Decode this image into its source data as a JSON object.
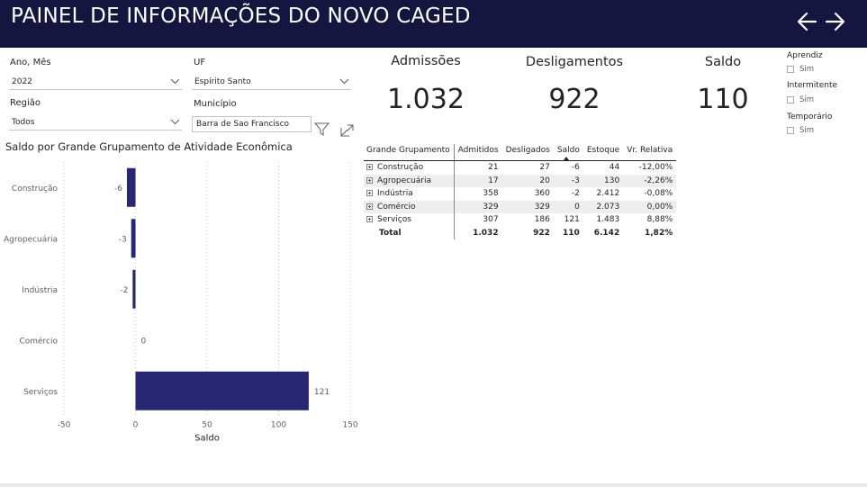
{
  "header": {
    "title": "PAINEL DE INFORMAÇÕES DO NOVO CAGED"
  },
  "filters": {
    "ano_mes": {
      "label": "Ano, Mês",
      "value": "2022"
    },
    "uf": {
      "label": "UF",
      "value": "Espírito Santo"
    },
    "regiao": {
      "label": "Região",
      "value": "Todos"
    },
    "municipio": {
      "label": "Município",
      "value": "Barra de Sao Francisco"
    }
  },
  "kpis": {
    "admissoes": {
      "label": "Admissões",
      "value": "1.032"
    },
    "desligamentos": {
      "label": "Desligamentos",
      "value": "922"
    },
    "saldo": {
      "label": "Saldo",
      "value": "110"
    }
  },
  "checkbox_filters": [
    {
      "group": "Aprendiz",
      "option": "Sim",
      "checked": false
    },
    {
      "group": "Intermitente",
      "option": "Sim",
      "checked": false
    },
    {
      "group": "Temporário",
      "option": "Sim",
      "checked": false
    }
  ],
  "icons": [
    "arrow-left-icon",
    "arrow-right-icon",
    "filter-icon",
    "focus-mode-icon",
    "chevron-down-icon",
    "expand-icon",
    "sort-descending-icon"
  ],
  "colors": {
    "header_bg": "#15163f",
    "bar": "#272773"
  },
  "matrix": {
    "headers": [
      "Grande Grupamento",
      "Admitidos",
      "Desligados",
      "Saldo",
      "Estoque",
      "Vr. Relativa"
    ],
    "rows": [
      [
        "Construção",
        "21",
        "27",
        "-6",
        "44",
        "-12,00%"
      ],
      [
        "Agropecuária",
        "17",
        "20",
        "-3",
        "130",
        "-2,26%"
      ],
      [
        "Indústria",
        "358",
        "360",
        "-2",
        "2.412",
        "-0,08%"
      ],
      [
        "Comércio",
        "329",
        "329",
        "0",
        "2.073",
        "0,00%"
      ],
      [
        "Serviços",
        "307",
        "186",
        "121",
        "1.483",
        "8,88%"
      ]
    ],
    "total": [
      "Total",
      "1.032",
      "922",
      "110",
      "6.142",
      "1,82%"
    ]
  },
  "chart_data": {
    "type": "bar",
    "orientation": "horizontal",
    "title": "Saldo por Grande Grupamento de Atividade Econômica",
    "xlabel": "Saldo",
    "ylabel": "",
    "categories": [
      "Construção",
      "Agropecuária",
      "Indústria",
      "Comércio",
      "Serviços"
    ],
    "values": [
      -6,
      -3,
      -2,
      0,
      121
    ],
    "data_labels": [
      "-6",
      "-3",
      "-2",
      "0",
      "121"
    ],
    "xlim": [
      -50,
      150
    ],
    "xticks": [
      -50,
      0,
      50,
      100,
      150
    ],
    "xtick_labels": [
      "-50",
      "0",
      "50",
      "100",
      "150"
    ],
    "grid": "vertical dotted",
    "legend": "none"
  }
}
